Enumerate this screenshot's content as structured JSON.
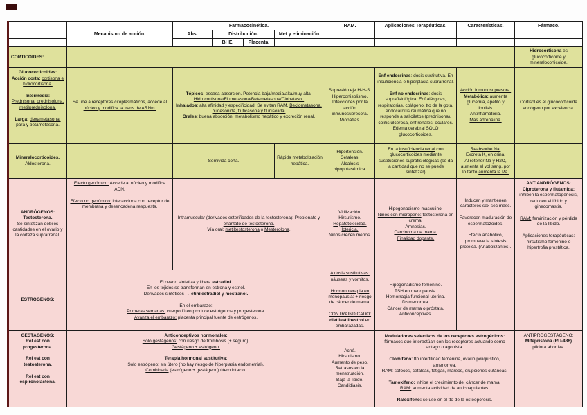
{
  "colors": {
    "row_yellow": "#dfe19c",
    "row_pink": "#f8d8d6",
    "border": "#1c1c1c",
    "corner_mark": "#3a0b0b"
  },
  "header": {
    "mecanismo": "Mecanismo de acción.",
    "farmacocinetica": "Farmacocinética.",
    "abs": "Abs.",
    "distribucion": "Distribución.",
    "bhe": "BHE.",
    "placenta": "Placenta.",
    "met": "Met y eliminación.",
    "ram": "RAM.",
    "aplicaciones": "Aplicaciones Terapéuticas.",
    "caracteristicas": "Características.",
    "farmaco": "Fármaco."
  },
  "rows": {
    "corticoides": {
      "label": "**CORTICOIDES:**",
      "middle": "",
      "farmaco": "**Hidrocortisona** es glucocorticoide y mineralocorticoide."
    },
    "glucocorticoides": {
      "label": "**Glucocorticoides:**\n**Acción corta:** __cortisona e hidrocortisona.__\n\n**Intermedia:**\n__Prednisona, prednisolona, metilprednisolona.__\n\n**Larga:** __dexametasona, para y betametasona.__",
      "mecanismo": "Se une a receptores citoplasmáticos, accede al __núcleo y modifica la trans de ARNm.__",
      "farmacocinetica": "**Tópicos**: escasa absorción. Potencia baja/media/alta/muy alta. __Hidrocortisona/Flumetasona/Betametasona/Clobetasol.__\n**Inhalados**: alta afinidad y especificidad. Se evitan RAM. __Beclometasona, budesonida, fluticasona y flunisolida.__\n**Orales**: buena absorción, metabolismo hepático y excreción renal.",
      "ram": "Supresión eje H-H-S.\nHipercortisolismo.\nInfecciones por la acción inmunosupresora.\nMiopatías.",
      "aplicaciones": "**Enf endocrinas**: dosis sustitutiva. En insuficiencia e hiperplasia suprarrenal.\n\n**Enf no endocrinas**: dosis suprafisiológica. Enf alérgicas, respiratorias, colágeno, tto de la gota, endocarditis reumática que no responde a salicilatos (prednisona), colitis ulcerosa, enf renales, oculares. Edema cerebral SOLO glucocorticoides.",
      "caracteristicas": "__Acción inmunosupresora.__\n**Metabólica:** aumenta glucemia, apetito y lipolisis.\n__Antinflamatoria.__\n__Mas adrenalina.__",
      "farmaco": "Cortisol es el glucocorticoide endógeno por excelencia."
    },
    "mineralocorticoides": {
      "label": "**Mineralocorticoides.**\n__Aldosterona.__",
      "mecanismo": "",
      "absorcion_distribucion": "Semivida corta.",
      "metabolismo": "Rápida metabolización hepática.",
      "ram": "Hipertensión.\nCefaleas.\nAlcalosis hipopotasémica.",
      "aplicaciones": "En la __insuficiencia renal__ con glucocorticoides mediante sustituciones suprafisiológicas (se da la cantidad que no se puede sintetizar)",
      "caracteristicas": "__Reabsorbe Na.__\n__Excreta K,__ en orina.\nAl retener Na y H2O, aumenta el vol sang, por lo tanto __aumenta la Pa.__",
      "farmaco": ""
    },
    "androgenos": {
      "label": "**ANDRÓGENOS:**\n**Testosterona.**\nSe sintetizan débiles cantidades en el ovario y la corteza suprarrenal.",
      "mecanismo": "__Efecto genómico:__ Accede al núcleo y modifica ADN.\n\n__Efecto no genómico:__ interacciona con receptor de membrana y desencadena respuesta.",
      "farmacocinetica": "Intramuscular (derivados esterificados de la testosterona): __Propionato y enantato de testosterona.__\nVía oral: __metiltestosterona__ o __Mesterolona__.",
      "ram": "Virilización.\nHirsutismo.\n__Hepatotoxicidad.__\n__Ictericia.__\nNiños crecen menos.",
      "aplicaciones": "__Hipogonadismo masculino.__\n__Niños con micropene:__ testosterona en crema.\n__Amnesias.__\n__Carcinoma de mama.__\n__Finalidad dopante.__",
      "caracteristicas": "Inducen y mantienen caracteres sex sec masc.\n\nFavorecen maduración de espermatozoides.\n\nEfecto anabólico, promueve la síntesis proteica. (Anabolizantes).",
      "farmaco": "**ANTIANDRÓGENOS:**\n**Ciproterona y flutamida:** inhiben la espermatogénesis, reducen el líbido y ginecomastia.\n\n__RAM:__ feminización y pérdida de la líbido.\n\n__Aplicaciones terapéuticas:__ hirsutismo femenino o hipertrofia prostática."
    },
    "estrogenos": {
      "label": "**ESTRÓGENOS:**",
      "mecanismo_farmacocinetica": "El ovario sintetiza y libera **estradiol.**\nEn los tejidos se transforman en estrona y estriol.\nDerivados sintéticos → **etinilestradiol y mestranol.**\n\n__En el embarazo:__\n__Primeras semanas:__ cuerpo lúteo produce estrógenos y progesterona.\n__Avanza el embarazo:__ placenta principal fuente de estrógenos.",
      "ram": "__A dosis sustitutivas:__ náuseas y vómitos.\n\n__Hormonoterapia en menopausia:__ + riesgo de cáncer de mama.\n\n__CONTRAINDICADO:__ **dietilestilbestrol** en embarazadas.",
      "aplicaciones": "Hipogonadismo femenino.\nTSH en menopausia.\nHemorragia funcional uterina.\nDismenorrea.\nCáncer de mama o próstata.\nAnticonceptivas.",
      "caracteristicas": "",
      "farmaco": ""
    },
    "gestagenos": {
      "label": "**GESTÁGENOS:**\n**Rel est con progesterona.**\n\n**Rel est con testosterona.**\n\n**Rel est con espironolactona.**",
      "mecanismo_farmacocinetica": "**Anticonceptivos hormonales:**\n__Solo gestágenos:__ con riesgo de trombosis (+ seguro).\n__Gestágeno + estrógeno.__\n\n**Terapia hormonal sustitutiva:**\n__Solo estrógeno:__ sin útero (no hay riesgo de hiperplasia endometrial).\n__Combinada__ (estrógeno + gestágeno) útero intacto.",
      "ram": "Acné.\nHirsutismo.\nAumento de peso.\nRetrasos en la menstruación.\nBaja la líbido.\nCandidiasis.",
      "aplicaciones_caracteristicas": "**Moduladores selectivos de los receptores estrogénicos:** fármacos que interactúan con los receptores actuando como antago o agonista.\n\n**Clomifeno**: tto infertilidad femenina, ovario poliquístico, amenorrea.\n__RAM:__ sofocos, cefaleas, fatigas, mareos, erupciones cutáneas.\n\n**Tamoxifeno:** inhibe el crecimiento del cáncer de mama.\n__RAM:__ aumenta actividad de anticoagulantes.\n\n**Raloxifeno:** se usó en el tto de la osteoporosis.",
      "farmaco": "ANTIPROGESTÁGENO:\n**Mifepristona (RU-486)**\npíldora abortiva."
    }
  }
}
